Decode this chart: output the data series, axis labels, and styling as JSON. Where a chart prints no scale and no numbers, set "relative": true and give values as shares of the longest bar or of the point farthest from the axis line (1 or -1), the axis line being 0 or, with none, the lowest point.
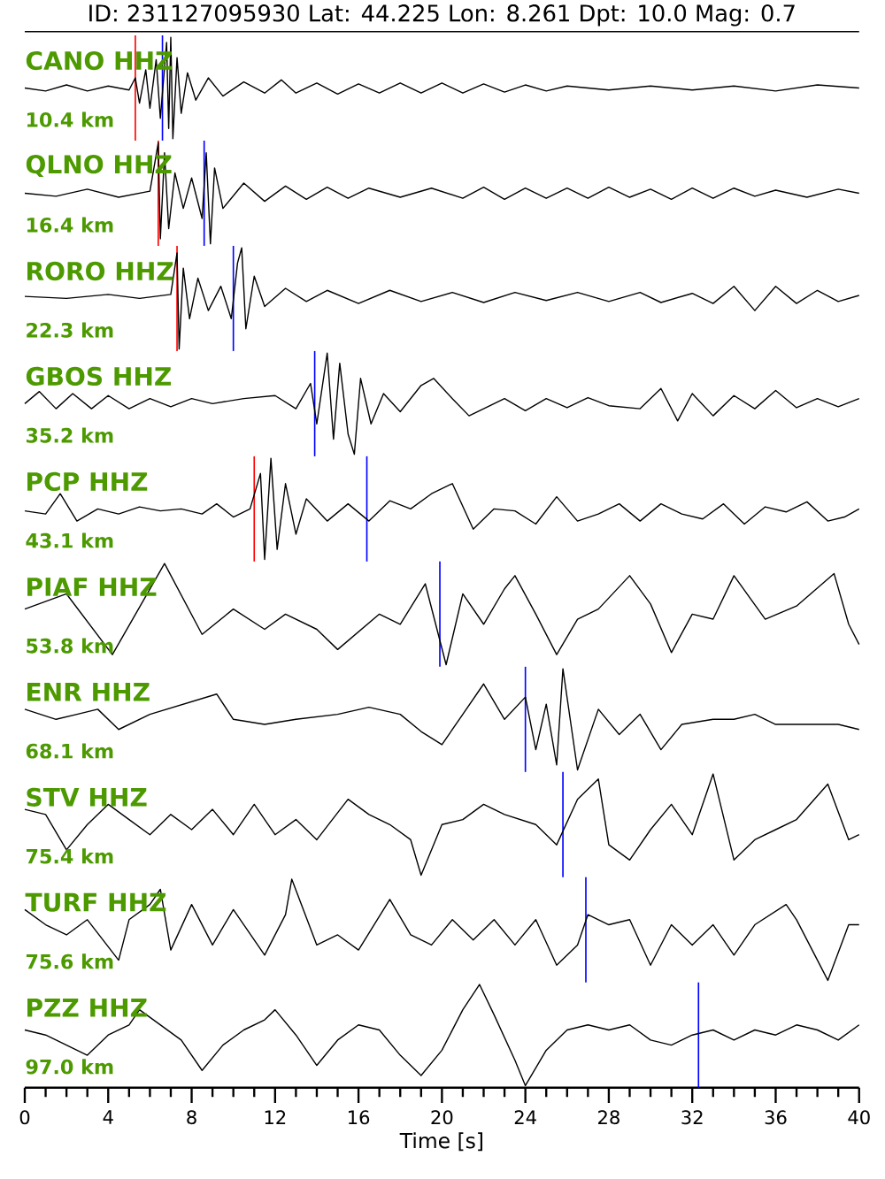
{
  "chart_data": [
    {
      "type": "line",
      "title": "ID: 231127095930 Lat:  44.225 Lon:   8.261 Dpt:    10.0 Mag:   0.7",
      "relative": true,
      "tick_labels": false,
      "xlim": [
        0,
        40
      ],
      "annotations": [
        "10.4 km"
      ],
      "ref_lines": [
        {
          "axis": "x",
          "value": 5.3,
          "color": "#ff0000"
        },
        {
          "axis": "x",
          "value": 6.6,
          "color": "#0000ff"
        }
      ],
      "series": [
        {
          "name": "CANO HHZ",
          "color": "#000000",
          "x": [
            0,
            1,
            2,
            3,
            4,
            5,
            5.3,
            5.5,
            5.8,
            6.0,
            6.3,
            6.5,
            6.8,
            6.9,
            7.0,
            7.1,
            7.3,
            7.5,
            7.8,
            8.2,
            8.8,
            9.5,
            10.5,
            11.5,
            12.3,
            13,
            14,
            15,
            16,
            17,
            18,
            19,
            20,
            21,
            22,
            23,
            24,
            25,
            26,
            28,
            30,
            32,
            34,
            36,
            38,
            40
          ],
          "values": [
            0.5,
            0.47,
            0.53,
            0.47,
            0.52,
            0.48,
            0.6,
            0.35,
            0.68,
            0.3,
            0.78,
            0.2,
            0.95,
            0.1,
            1.0,
            0.0,
            0.8,
            0.25,
            0.65,
            0.38,
            0.6,
            0.42,
            0.56,
            0.45,
            0.58,
            0.45,
            0.55,
            0.44,
            0.54,
            0.45,
            0.55,
            0.45,
            0.55,
            0.45,
            0.54,
            0.46,
            0.53,
            0.47,
            0.52,
            0.48,
            0.52,
            0.48,
            0.52,
            0.47,
            0.53,
            0.5
          ]
        }
      ]
    },
    {
      "type": "line",
      "relative": true,
      "tick_labels": false,
      "xlim": [
        0,
        40
      ],
      "annotations": [
        "16.4 km"
      ],
      "ref_lines": [
        {
          "axis": "x",
          "value": 6.4,
          "color": "#ff0000"
        },
        {
          "axis": "x",
          "value": 8.6,
          "color": "#0000ff"
        }
      ],
      "series": [
        {
          "name": "QLNO HHZ",
          "color": "#000000",
          "x": [
            0,
            1.5,
            3,
            4.5,
            6,
            6.4,
            6.5,
            6.7,
            6.9,
            7.2,
            7.6,
            8.0,
            8.5,
            8.7,
            8.9,
            9.1,
            9.5,
            10.5,
            11.5,
            12.5,
            13.5,
            14.5,
            15.5,
            16.5,
            18,
            19.5,
            21,
            22,
            23,
            24,
            25,
            26,
            27,
            28,
            29,
            30,
            31,
            32,
            33,
            34,
            35,
            36,
            37.5,
            39,
            40
          ],
          "values": [
            0.5,
            0.47,
            0.54,
            0.46,
            0.52,
            1.0,
            0.05,
            0.9,
            0.15,
            0.7,
            0.35,
            0.65,
            0.25,
            0.9,
            0.0,
            0.75,
            0.35,
            0.6,
            0.42,
            0.57,
            0.44,
            0.56,
            0.45,
            0.55,
            0.46,
            0.55,
            0.45,
            0.56,
            0.44,
            0.55,
            0.45,
            0.55,
            0.45,
            0.56,
            0.46,
            0.54,
            0.44,
            0.55,
            0.45,
            0.55,
            0.47,
            0.53,
            0.46,
            0.54,
            0.5
          ]
        }
      ]
    },
    {
      "type": "line",
      "relative": true,
      "tick_labels": false,
      "xlim": [
        0,
        40
      ],
      "annotations": [
        "22.3 km"
      ],
      "ref_lines": [
        {
          "axis": "x",
          "value": 7.3,
          "color": "#ff0000"
        },
        {
          "axis": "x",
          "value": 10.0,
          "color": "#0000ff"
        }
      ],
      "series": [
        {
          "name": "RORO HHZ",
          "color": "#000000",
          "x": [
            0,
            2,
            4,
            5.5,
            7.0,
            7.3,
            7.4,
            7.6,
            7.9,
            8.3,
            8.8,
            9.4,
            9.9,
            10.2,
            10.4,
            10.6,
            11,
            11.5,
            12.5,
            13.5,
            14.5,
            16,
            17.5,
            19,
            20.5,
            22,
            23.5,
            25,
            26.5,
            28,
            29.5,
            30.5,
            32,
            33,
            34,
            35,
            36,
            37,
            38,
            39,
            40
          ],
          "values": [
            0.52,
            0.5,
            0.54,
            0.5,
            0.54,
            0.95,
            0.0,
            0.8,
            0.3,
            0.7,
            0.38,
            0.62,
            0.3,
            0.85,
            1.0,
            0.2,
            0.72,
            0.42,
            0.6,
            0.47,
            0.58,
            0.45,
            0.58,
            0.47,
            0.56,
            0.46,
            0.56,
            0.48,
            0.56,
            0.47,
            0.56,
            0.46,
            0.55,
            0.45,
            0.62,
            0.38,
            0.62,
            0.45,
            0.58,
            0.47,
            0.53
          ]
        }
      ]
    },
    {
      "type": "line",
      "relative": true,
      "tick_labels": false,
      "xlim": [
        0,
        40
      ],
      "annotations": [
        "35.2 km"
      ],
      "ref_lines": [
        {
          "axis": "x",
          "value": 13.9,
          "color": "#0000ff"
        }
      ],
      "series": [
        {
          "name": "GBOS HHZ",
          "color": "#000000",
          "x": [
            0,
            0.7,
            1.5,
            2.3,
            3.2,
            4,
            5,
            6,
            7,
            8,
            9,
            10.5,
            12,
            13,
            13.7,
            14,
            14.5,
            14.8,
            15.1,
            15.5,
            15.8,
            16.1,
            16.6,
            17.2,
            18,
            19,
            19.6,
            20.5,
            21.3,
            22,
            23,
            24,
            25,
            26,
            27,
            28,
            29.5,
            30.5,
            31.3,
            32,
            33,
            34,
            35,
            36,
            37,
            38,
            39,
            40
          ],
          "values": [
            0.5,
            0.62,
            0.45,
            0.6,
            0.45,
            0.58,
            0.45,
            0.55,
            0.47,
            0.55,
            0.5,
            0.55,
            0.58,
            0.45,
            0.7,
            0.3,
            1.0,
            0.15,
            0.9,
            0.2,
            0.0,
            0.75,
            0.3,
            0.6,
            0.42,
            0.68,
            0.75,
            0.55,
            0.38,
            0.45,
            0.55,
            0.43,
            0.55,
            0.46,
            0.56,
            0.48,
            0.45,
            0.65,
            0.33,
            0.6,
            0.38,
            0.58,
            0.45,
            0.63,
            0.46,
            0.55,
            0.47,
            0.55
          ]
        }
      ]
    },
    {
      "type": "line",
      "relative": true,
      "tick_labels": false,
      "xlim": [
        0,
        40
      ],
      "annotations": [
        "43.1 km"
      ],
      "ref_lines": [
        {
          "axis": "x",
          "value": 11.0,
          "color": "#ff0000"
        },
        {
          "axis": "x",
          "value": 16.4,
          "color": "#0000ff"
        }
      ],
      "series": [
        {
          "name": "PCP HHZ",
          "color": "#000000",
          "x": [
            0,
            1,
            1.7,
            2.5,
            3.5,
            4.5,
            5.5,
            6.5,
            7.5,
            8.5,
            9.2,
            10,
            10.8,
            11.3,
            11.5,
            11.8,
            12.1,
            12.5,
            13,
            13.5,
            14.5,
            15.5,
            16.5,
            17.5,
            18.5,
            19.5,
            20.5,
            21.5,
            22.5,
            23.5,
            24.5,
            25.5,
            26.5,
            27.5,
            28.5,
            29.5,
            30.5,
            31.5,
            32.5,
            33.5,
            34.5,
            35.5,
            36.5,
            37.5,
            38.5,
            39.3,
            40
          ],
          "values": [
            0.48,
            0.45,
            0.65,
            0.38,
            0.5,
            0.45,
            0.52,
            0.48,
            0.5,
            0.45,
            0.55,
            0.42,
            0.5,
            0.85,
            0.0,
            1.0,
            0.1,
            0.75,
            0.25,
            0.6,
            0.38,
            0.55,
            0.38,
            0.58,
            0.5,
            0.65,
            0.75,
            0.3,
            0.5,
            0.48,
            0.35,
            0.62,
            0.38,
            0.45,
            0.55,
            0.38,
            0.55,
            0.45,
            0.4,
            0.55,
            0.35,
            0.52,
            0.47,
            0.57,
            0.38,
            0.42,
            0.5
          ]
        }
      ]
    },
    {
      "type": "line",
      "relative": true,
      "tick_labels": false,
      "xlim": [
        0,
        40
      ],
      "annotations": [
        "53.8 km"
      ],
      "ref_lines": [
        {
          "axis": "x",
          "value": 19.9,
          "color": "#0000ff"
        }
      ],
      "series": [
        {
          "name": "PIAF HHZ",
          "color": "#000000",
          "x": [
            0,
            2,
            4.2,
            6.7,
            8.5,
            10,
            11.5,
            12.5,
            14,
            15,
            17,
            18,
            19.2,
            20.2,
            21,
            22,
            23,
            23.5,
            24.5,
            25.5,
            26.5,
            27.5,
            29,
            30,
            31,
            32,
            33,
            34,
            35.5,
            37,
            38.8,
            39.5,
            40
          ],
          "values": [
            0.55,
            0.7,
            0.1,
            1.0,
            0.3,
            0.55,
            0.35,
            0.5,
            0.35,
            0.15,
            0.5,
            0.4,
            0.8,
            0.0,
            0.7,
            0.4,
            0.75,
            0.88,
            0.5,
            0.1,
            0.45,
            0.55,
            0.88,
            0.6,
            0.12,
            0.5,
            0.45,
            0.88,
            0.45,
            0.58,
            0.9,
            0.4,
            0.2
          ]
        }
      ]
    },
    {
      "type": "line",
      "relative": true,
      "tick_labels": false,
      "xlim": [
        0,
        40
      ],
      "annotations": [
        "68.1 km"
      ],
      "ref_lines": [
        {
          "axis": "x",
          "value": 24.0,
          "color": "#0000ff"
        }
      ],
      "series": [
        {
          "name": "ENR HHZ",
          "color": "#000000",
          "x": [
            0,
            1.5,
            2.5,
            3.5,
            4.5,
            6,
            9.2,
            10,
            11.5,
            13,
            15,
            16.5,
            18,
            19,
            20,
            21,
            22,
            23,
            24,
            24.5,
            25,
            25.5,
            25.8,
            26.5,
            27.5,
            28.5,
            29.5,
            30.5,
            31.5,
            33,
            34,
            35,
            36,
            37.5,
            39,
            40
          ],
          "values": [
            0.6,
            0.5,
            0.55,
            0.6,
            0.4,
            0.55,
            0.75,
            0.5,
            0.45,
            0.5,
            0.55,
            0.62,
            0.55,
            0.38,
            0.25,
            0.55,
            0.85,
            0.5,
            0.72,
            0.2,
            0.65,
            0.05,
            1.0,
            0.0,
            0.6,
            0.35,
            0.55,
            0.2,
            0.45,
            0.5,
            0.5,
            0.55,
            0.45,
            0.45,
            0.45,
            0.4
          ]
        }
      ]
    },
    {
      "type": "line",
      "relative": true,
      "tick_labels": false,
      "xlim": [
        0,
        40
      ],
      "annotations": [
        "75.4 km"
      ],
      "ref_lines": [
        {
          "axis": "x",
          "value": 25.8,
          "color": "#0000ff"
        }
      ],
      "series": [
        {
          "name": "STV HHZ",
          "color": "#000000",
          "x": [
            0,
            1,
            2,
            3,
            4,
            5,
            6,
            7,
            8,
            9,
            10,
            11,
            12,
            13,
            14,
            15.5,
            16.5,
            17.5,
            18.5,
            19,
            20,
            21,
            22,
            23,
            24.5,
            25.5,
            26.5,
            27.5,
            28,
            29,
            30,
            31,
            32,
            33,
            34,
            35,
            36,
            37,
            38.5,
            39.5,
            40
          ],
          "values": [
            0.65,
            0.6,
            0.25,
            0.5,
            0.7,
            0.55,
            0.4,
            0.6,
            0.45,
            0.65,
            0.4,
            0.7,
            0.4,
            0.55,
            0.35,
            0.75,
            0.6,
            0.5,
            0.35,
            0.0,
            0.5,
            0.55,
            0.7,
            0.6,
            0.5,
            0.3,
            0.75,
            0.95,
            0.3,
            0.15,
            0.45,
            0.7,
            0.4,
            1.0,
            0.15,
            0.35,
            0.45,
            0.55,
            0.9,
            0.35,
            0.4
          ]
        }
      ]
    },
    {
      "type": "line",
      "relative": true,
      "tick_labels": false,
      "xlim": [
        0,
        40
      ],
      "annotations": [
        "75.6 km"
      ],
      "ref_lines": [
        {
          "axis": "x",
          "value": 26.9,
          "color": "#0000ff"
        }
      ],
      "series": [
        {
          "name": "TURF HHZ",
          "color": "#000000",
          "x": [
            0,
            1,
            2,
            3,
            4.5,
            5,
            6,
            6.5,
            7,
            8,
            9,
            10,
            11.5,
            12.5,
            12.8,
            14,
            15,
            16,
            17.5,
            18.5,
            19.5,
            20.5,
            21.5,
            22.5,
            23.5,
            24.5,
            25.5,
            26.5,
            27,
            28,
            29,
            30,
            31,
            32,
            33,
            34,
            35,
            36.5,
            37,
            38.5,
            39.5,
            40
          ],
          "values": [
            0.7,
            0.55,
            0.45,
            0.6,
            0.2,
            0.6,
            0.75,
            0.9,
            0.3,
            0.75,
            0.35,
            0.7,
            0.25,
            0.65,
            1.0,
            0.35,
            0.45,
            0.3,
            0.8,
            0.45,
            0.35,
            0.6,
            0.4,
            0.6,
            0.35,
            0.6,
            0.15,
            0.35,
            0.65,
            0.55,
            0.6,
            0.15,
            0.55,
            0.35,
            0.55,
            0.25,
            0.55,
            0.75,
            0.6,
            0.0,
            0.55,
            0.55
          ]
        }
      ]
    },
    {
      "type": "line",
      "relative": true,
      "tick_labels": "x",
      "xlim": [
        0,
        40
      ],
      "xlabel": "Time [s]",
      "annotations": [
        "97.0 km"
      ],
      "ref_lines": [
        {
          "axis": "x",
          "value": 32.3,
          "color": "#0000ff"
        }
      ],
      "xticks": [
        0,
        {
          "value": 1,
          "label": null
        },
        {
          "value": 2,
          "label": null
        },
        {
          "value": 3,
          "label": null
        },
        4,
        {
          "value": 5,
          "label": null
        },
        {
          "value": 6,
          "label": null
        },
        {
          "value": 7,
          "label": null
        },
        8,
        {
          "value": 9,
          "label": null
        },
        {
          "value": 10,
          "label": null
        },
        {
          "value": 11,
          "label": null
        },
        12,
        {
          "value": 13,
          "label": null
        },
        {
          "value": 14,
          "label": null
        },
        {
          "value": 15,
          "label": null
        },
        16,
        {
          "value": 17,
          "label": null
        },
        {
          "value": 18,
          "label": null
        },
        {
          "value": 19,
          "label": null
        },
        20,
        {
          "value": 21,
          "label": null
        },
        {
          "value": 22,
          "label": null
        },
        {
          "value": 23,
          "label": null
        },
        24,
        {
          "value": 25,
          "label": null
        },
        {
          "value": 26,
          "label": null
        },
        {
          "value": 27,
          "label": null
        },
        28,
        {
          "value": 29,
          "label": null
        },
        {
          "value": 30,
          "label": null
        },
        {
          "value": 31,
          "label": null
        },
        32,
        {
          "value": 33,
          "label": null
        },
        {
          "value": 34,
          "label": null
        },
        {
          "value": 35,
          "label": null
        },
        36,
        {
          "value": 37,
          "label": null
        },
        {
          "value": 38,
          "label": null
        },
        {
          "value": 39,
          "label": null
        },
        40
      ],
      "series": [
        {
          "name": "PZZ HHZ",
          "color": "#000000",
          "x": [
            0,
            1,
            2,
            3,
            4,
            5,
            5.5,
            6.5,
            7.5,
            8.5,
            9.5,
            10.5,
            11.5,
            12,
            13,
            14,
            15,
            16,
            17,
            18,
            19,
            20,
            21,
            21.8,
            22.5,
            23.5,
            24,
            25,
            26,
            27,
            28,
            29,
            30,
            31,
            32,
            33,
            34,
            35,
            36,
            37,
            38,
            39,
            40
          ],
          "values": [
            0.55,
            0.5,
            0.4,
            0.3,
            0.5,
            0.6,
            0.75,
            0.6,
            0.45,
            0.15,
            0.4,
            0.55,
            0.65,
            0.75,
            0.5,
            0.2,
            0.45,
            0.6,
            0.55,
            0.3,
            0.1,
            0.35,
            0.75,
            1.0,
            0.7,
            0.25,
            0.0,
            0.35,
            0.55,
            0.6,
            0.55,
            0.6,
            0.45,
            0.4,
            0.5,
            0.55,
            0.45,
            0.55,
            0.5,
            0.6,
            0.55,
            0.45,
            0.6
          ]
        }
      ]
    }
  ]
}
